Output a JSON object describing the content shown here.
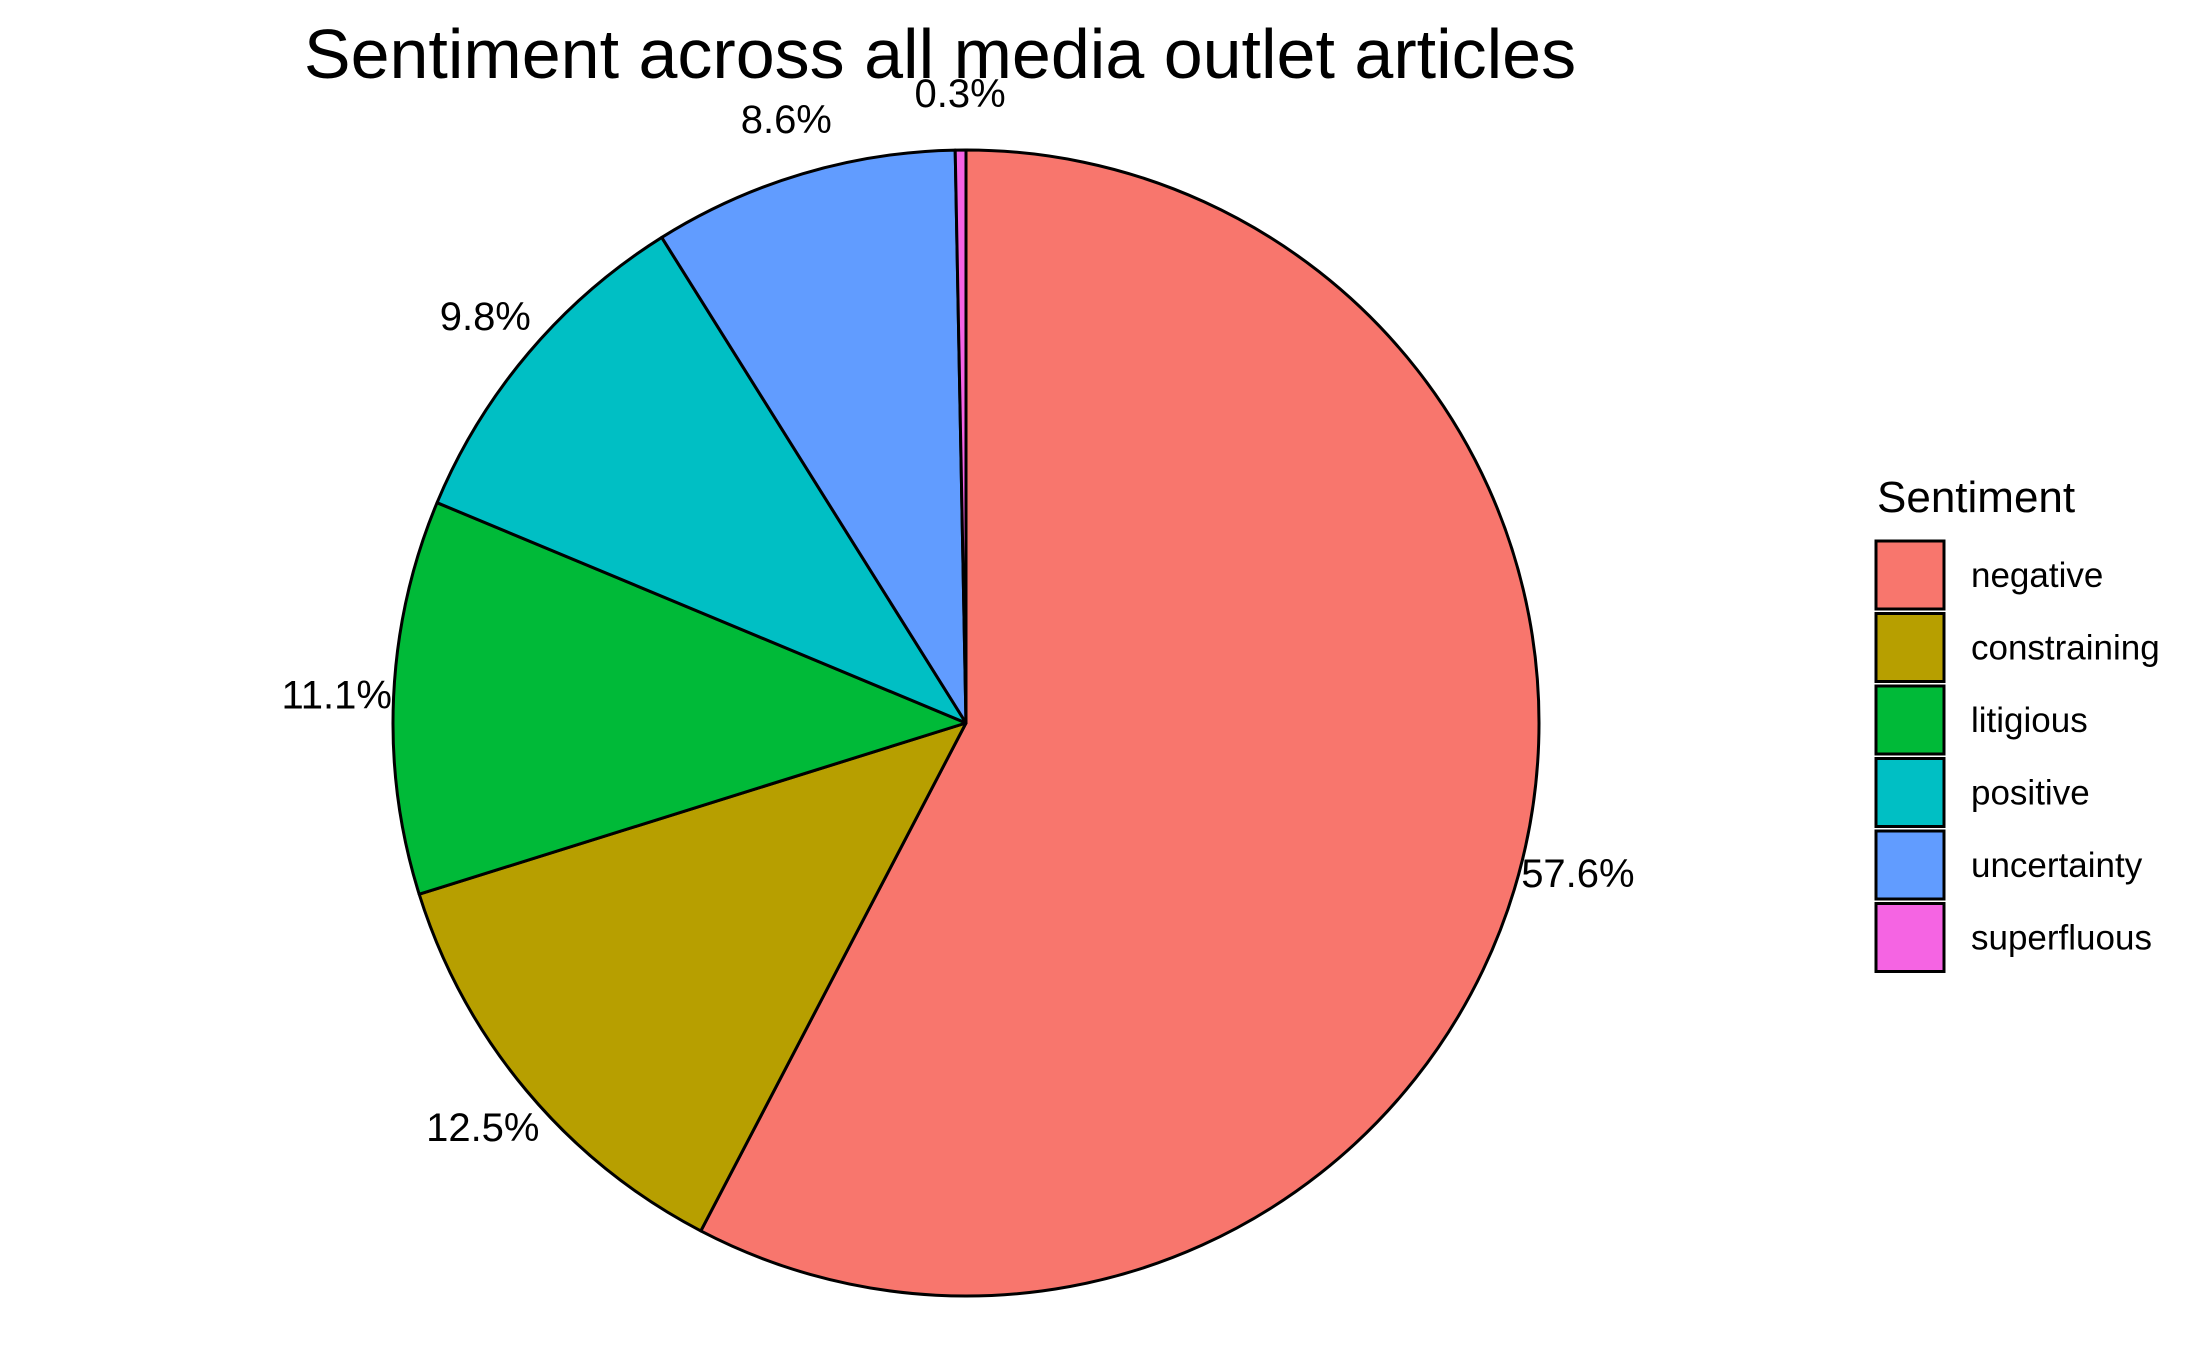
{
  "chart_data": {
    "type": "pie",
    "title": "Sentiment across all media outlet articles",
    "start": "12 o'clock",
    "direction": "clockwise",
    "slices": [
      {
        "category": "negative",
        "value": 57.6,
        "label": "57.6%",
        "color": "#F8766D"
      },
      {
        "category": "constraining",
        "value": 12.5,
        "label": "12.5%",
        "color": "#B79F00"
      },
      {
        "category": "litigious",
        "value": 11.1,
        "label": "11.1%",
        "color": "#00BA38"
      },
      {
        "category": "positive",
        "value": 9.8,
        "label": "9.8%",
        "color": "#00BFC4"
      },
      {
        "category": "uncertainty",
        "value": 8.6,
        "label": "8.6%",
        "color": "#619CFF"
      },
      {
        "category": "superfluous",
        "value": 0.3,
        "label": "0.3%",
        "color": "#F564E3"
      }
    ],
    "legend": {
      "title": "Sentiment",
      "position": "right",
      "items": [
        "negative",
        "constraining",
        "litigious",
        "positive",
        "uncertainty",
        "superfluous"
      ]
    }
  }
}
